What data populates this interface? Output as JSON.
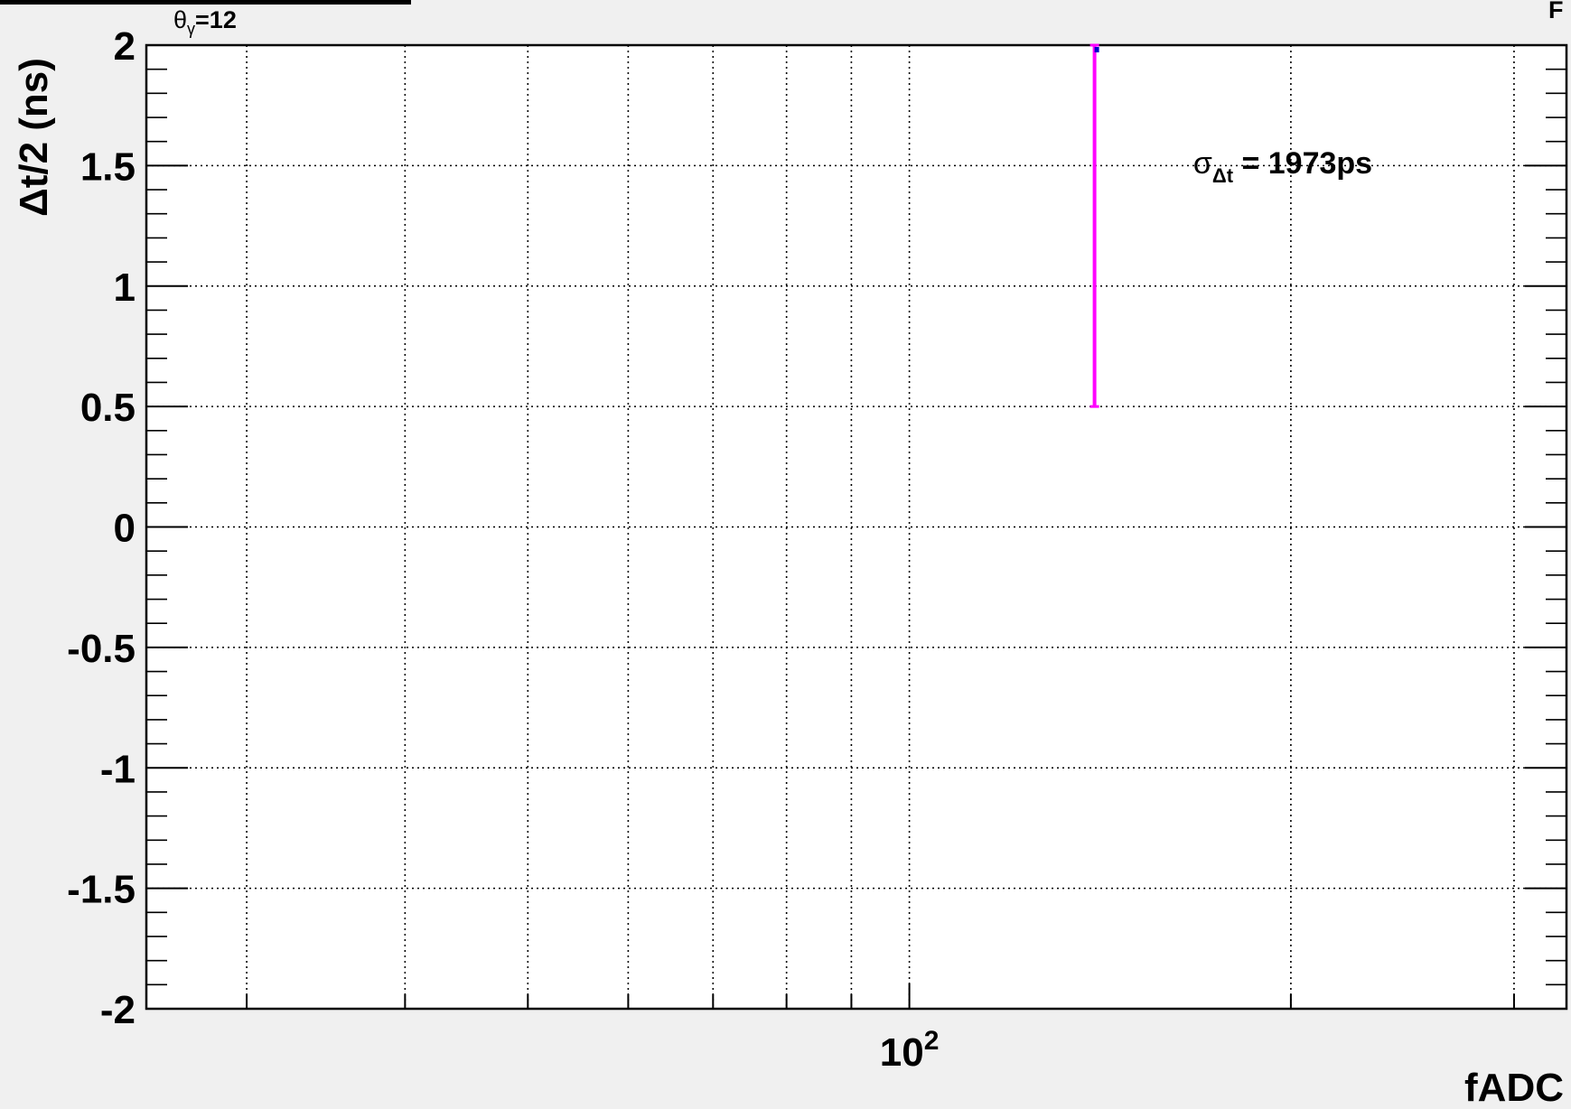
{
  "chart_data": {
    "type": "scatter",
    "title": "",
    "top_left_label": {
      "symbol": "θ",
      "subscript": "γ",
      "value": "=12"
    },
    "top_right_label": "F",
    "xlabel": "fADC",
    "ylabel": "Δt/2 (ns)",
    "x_scale": "log",
    "xlim": [
      25,
      330
    ],
    "ylim": [
      -2,
      2
    ],
    "x_tick_labels": [
      {
        "value": 100,
        "base": "10",
        "exponent": "2"
      }
    ],
    "x_minor_grid_values": [
      30,
      40,
      50,
      60,
      70,
      80,
      90,
      100,
      200,
      300
    ],
    "y_ticks": [
      2,
      1.5,
      1,
      0.5,
      0,
      -0.5,
      -1,
      -1.5,
      -2
    ],
    "y_tick_labels": [
      "2",
      "1.5",
      "1",
      "0.5",
      "0",
      "-0.5",
      "-1",
      "-1.5",
      "-2"
    ],
    "grid": true,
    "series": [
      {
        "color": "#ff00ff",
        "points": [
          {
            "x": 140,
            "y": 2.0,
            "y_low": 0.5,
            "y_high": 2.0
          }
        ]
      }
    ],
    "annotation": {
      "symbol": "σ",
      "subscript": "Δt",
      "text": " = 1973ps",
      "x": 200,
      "y": 1.52
    }
  }
}
